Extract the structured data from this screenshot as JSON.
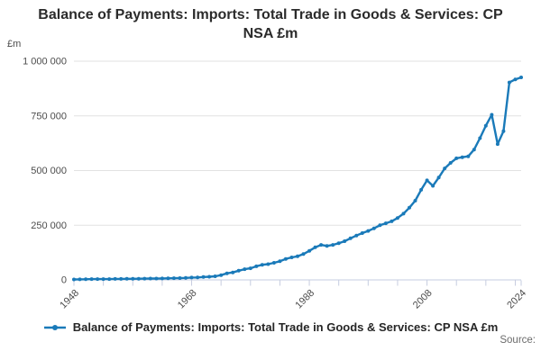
{
  "page": {
    "source_label": "Source:"
  },
  "chart_data": {
    "type": "line",
    "title": "Balance of Payments: Imports: Total Trade in Goods & Services: CP NSA £m",
    "series_name": "Balance of Payments: Imports: Total Trade in Goods & Services: CP NSA £m",
    "unit_label": "£m",
    "xlabel": "",
    "ylabel": "£m",
    "xlim": [
      1948,
      2024
    ],
    "ylim": [
      0,
      1000000
    ],
    "grid": "horizontal",
    "legend_position": "bottom",
    "ytick_values": [
      0,
      250000,
      500000,
      750000,
      1000000
    ],
    "ytick_labels": [
      "0",
      "250 000",
      "500 000",
      "750 000",
      "1 000 000"
    ],
    "xtick_labeled_years": [
      1948,
      1968,
      1988,
      2008,
      2024
    ],
    "minor_xtick_step_years": 5,
    "line_color": "#1a7ab9",
    "grid_color": "#e2e2e2",
    "axis_color": "#c6cce0",
    "text_color": "#4c4c4c",
    "x": [
      1948,
      1949,
      1950,
      1951,
      1952,
      1953,
      1954,
      1955,
      1956,
      1957,
      1958,
      1959,
      1960,
      1961,
      1962,
      1963,
      1964,
      1965,
      1966,
      1967,
      1968,
      1969,
      1970,
      1971,
      1972,
      1973,
      1974,
      1975,
      1976,
      1977,
      1978,
      1979,
      1980,
      1981,
      1982,
      1983,
      1984,
      1985,
      1986,
      1987,
      1988,
      1989,
      1990,
      1991,
      1992,
      1993,
      1994,
      1995,
      1996,
      1997,
      1998,
      1999,
      2000,
      2001,
      2002,
      2003,
      2004,
      2005,
      2006,
      2007,
      2008,
      2009,
      2010,
      2011,
      2012,
      2013,
      2014,
      2015,
      2016,
      2017,
      2018,
      2019,
      2020,
      2021,
      2022,
      2023,
      2024
    ],
    "values": [
      2000,
      2300,
      2700,
      3600,
      3600,
      3700,
      3900,
      4400,
      4600,
      4800,
      4800,
      5200,
      5900,
      6100,
      6300,
      6700,
      7600,
      8000,
      8400,
      9200,
      10600,
      11300,
      13000,
      14500,
      16500,
      22000,
      30000,
      34000,
      42000,
      49000,
      53000,
      62000,
      69000,
      72000,
      78000,
      85000,
      96000,
      103000,
      108000,
      118000,
      133000,
      149000,
      160000,
      155000,
      160000,
      168000,
      177000,
      190000,
      203000,
      214000,
      224000,
      236000,
      250000,
      259000,
      268000,
      283000,
      303000,
      330000,
      362000,
      412000,
      455000,
      430000,
      468000,
      510000,
      535000,
      556000,
      561000,
      565000,
      596000,
      648000,
      705000,
      755000,
      621000,
      680000,
      903000,
      917000,
      926000
    ]
  }
}
